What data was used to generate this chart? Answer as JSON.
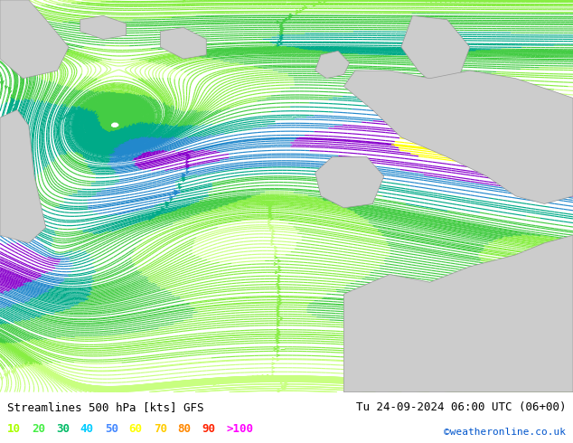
{
  "title_left": "Streamlines 500 hPa [kts] GFS",
  "title_right": "Tu 24-09-2024 06:00 UTC (06+00)",
  "credit": "©weatheronline.co.uk",
  "legend_values": [
    "10",
    "20",
    "30",
    "40",
    "50",
    "60",
    "70",
    "80",
    "90",
    ">100"
  ],
  "legend_colors": [
    "#aaff00",
    "#00ff44",
    "#00dd88",
    "#00ccff",
    "#4488ff",
    "#ffff00",
    "#ffcc00",
    "#ff8800",
    "#ff2200",
    "#ff00ff"
  ],
  "bg_color": "#ffffff",
  "sea_color": "#b8f0a0",
  "land_color": "#cccccc",
  "figsize": [
    6.34,
    4.9
  ],
  "dpi": 100,
  "speed_levels": [
    0,
    10,
    20,
    30,
    40,
    50,
    60,
    70,
    80,
    90,
    100,
    200
  ],
  "stream_colors": [
    "#c8ff80",
    "#88ee44",
    "#44cc44",
    "#00aa88",
    "#2288cc",
    "#8800cc",
    "#ffff00",
    "#ffaa00",
    "#ff4400",
    "#ff00aa",
    "#cc00ff"
  ],
  "title_fontsize": 9,
  "legend_fontsize": 9,
  "credit_fontsize": 8
}
